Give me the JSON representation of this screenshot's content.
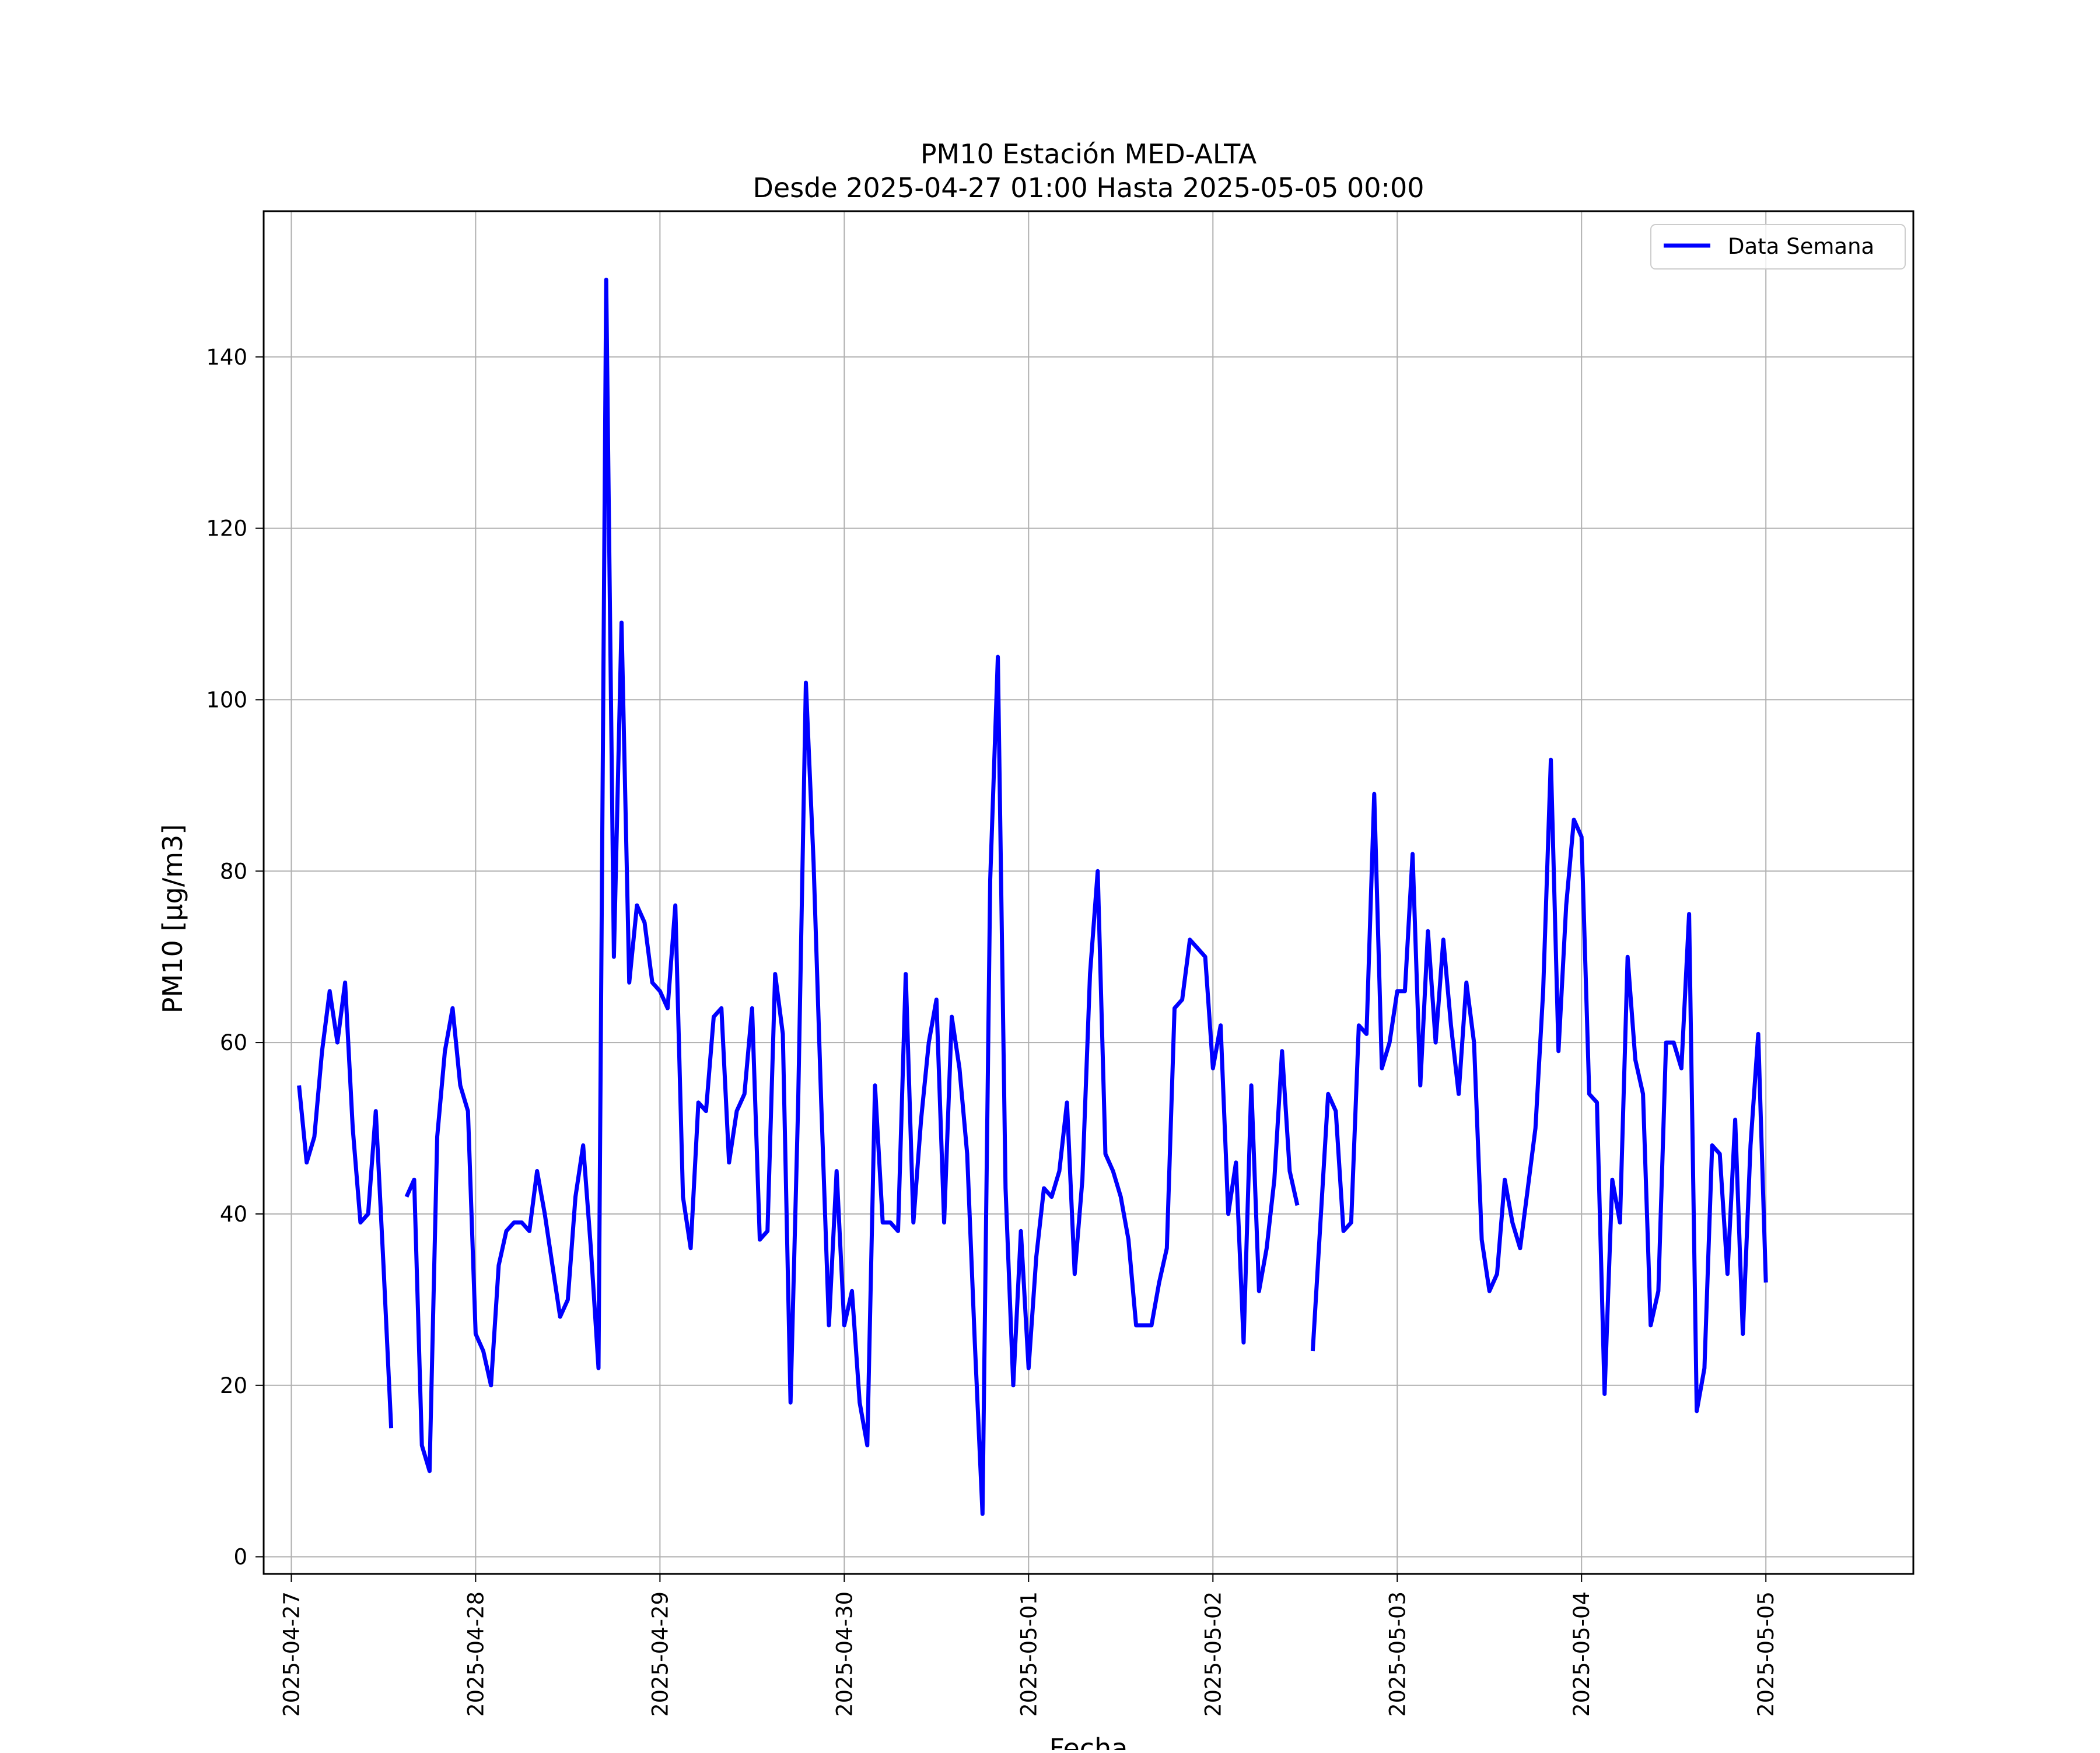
{
  "chart_data": {
    "type": "line",
    "title": "PM10 Estación MED-ALTA",
    "subtitle": "Desde 2025-04-27 01:00 Hasta 2025-05-05 00:00",
    "xlabel": "Fecha",
    "ylabel": "PM10 [μg/m3]",
    "xlim": [
      "2025-04-26 20:24",
      "2025-05-05 19:12"
    ],
    "ylim": [
      -2,
      157
    ],
    "x_ticks": [
      "2025-04-27",
      "2025-04-28",
      "2025-04-29",
      "2025-04-30",
      "2025-05-01",
      "2025-05-02",
      "2025-05-03",
      "2025-05-04",
      "2025-05-05"
    ],
    "y_ticks": [
      0,
      20,
      40,
      60,
      80,
      100,
      120,
      140
    ],
    "y_tick_labels": [
      "0",
      "20",
      "40",
      "60",
      "80",
      "100",
      "120",
      "140"
    ],
    "grid": true,
    "legend_position": "top-right",
    "series": [
      {
        "name": "Data Semana",
        "color": "#0000ff",
        "x_start": "2025-04-27 01:00",
        "x_interval_hours": 1,
        "values": [
          55,
          46,
          49,
          59,
          66,
          60,
          67,
          50,
          39,
          40,
          52,
          34,
          15,
          null,
          42,
          44,
          13,
          10,
          49,
          59,
          64,
          55,
          52,
          26,
          24,
          20,
          34,
          38,
          39,
          39,
          38,
          45,
          40,
          34,
          28,
          30,
          42,
          48,
          36,
          22,
          149,
          70,
          109,
          67,
          76,
          74,
          67,
          66,
          64,
          76,
          42,
          36,
          53,
          52,
          63,
          64,
          46,
          52,
          54,
          64,
          37,
          38,
          68,
          61,
          18,
          53,
          102,
          81,
          53,
          27,
          45,
          27,
          31,
          18,
          13,
          55,
          39,
          39,
          38,
          68,
          39,
          51,
          60,
          65,
          39,
          63,
          57,
          47,
          25,
          5,
          79,
          105,
          43,
          20,
          38,
          22,
          35,
          43,
          42,
          45,
          53,
          33,
          44,
          68,
          80,
          47,
          45,
          42,
          37,
          27,
          27,
          27,
          32,
          36,
          64,
          65,
          72,
          71,
          70,
          57,
          62,
          40,
          46,
          25,
          55,
          31,
          36,
          44,
          59,
          45,
          41,
          null,
          24,
          39,
          54,
          52,
          38,
          39,
          62,
          61,
          89,
          57,
          60,
          66,
          66,
          82,
          55,
          73,
          60,
          72,
          62,
          54,
          67,
          60,
          37,
          31,
          33,
          44,
          39,
          36,
          43,
          50,
          66,
          93,
          59,
          76,
          86,
          84,
          54,
          53,
          19,
          44,
          39,
          70,
          58,
          54,
          27,
          31,
          60,
          60,
          57,
          75,
          17,
          22,
          48,
          47,
          33,
          51,
          26,
          48,
          61,
          32
        ]
      }
    ]
  }
}
